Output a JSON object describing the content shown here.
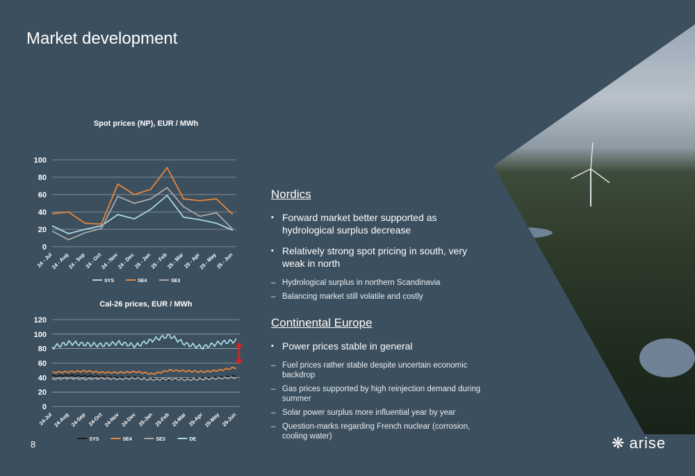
{
  "page": {
    "title": "Market development",
    "page_number": "8",
    "logo_text": "arise"
  },
  "chart_data": [
    {
      "type": "line",
      "title": "Spot prices (NP), EUR / MWh",
      "categories": [
        "24 - Jul",
        "24 - Aug",
        "24 - Sep",
        "24 - Oct",
        "24 - Nov",
        "24 - Dec",
        "25 - Jan",
        "25 - Feb",
        "25 - Mar",
        "25 - Apr",
        "25 - May",
        "25 - Jun"
      ],
      "ylim": [
        0,
        100
      ],
      "yticks": [
        "0",
        "20",
        "40",
        "60",
        "80",
        "100"
      ],
      "series": [
        {
          "name": "SYS",
          "color": "#a8d8e0",
          "values": [
            24,
            15,
            20,
            24,
            37,
            32,
            43,
            59,
            34,
            31,
            27,
            19
          ]
        },
        {
          "name": "SE4",
          "color": "#e8873a",
          "values": [
            38,
            40,
            27,
            26,
            72,
            60,
            66,
            91,
            55,
            53,
            55,
            37
          ]
        },
        {
          "name": "SE3",
          "color": "#a9a9a9",
          "values": [
            18,
            8,
            16,
            21,
            58,
            50,
            55,
            68,
            46,
            35,
            39,
            20
          ]
        }
      ],
      "legend": "bottom"
    },
    {
      "type": "line",
      "title": "Cal-26 prices, EUR / MWh",
      "categories": [
        "24-Jul",
        "24-Aug",
        "24-Sep",
        "24-Oct",
        "24-Nov",
        "24-Dec",
        "25-Jan",
        "25-Feb",
        "25-Mar",
        "25-Apr",
        "25-May",
        "25-Jun"
      ],
      "ylim": [
        0,
        120
      ],
      "yticks": [
        "0",
        "20",
        "40",
        "60",
        "80",
        "100",
        "120"
      ],
      "series": [
        {
          "name": "SYS",
          "color": "#1a1a1a",
          "values": [
            42,
            43,
            42,
            41,
            40,
            40,
            38,
            37,
            38,
            39,
            40,
            42
          ]
        },
        {
          "name": "SE4",
          "color": "#e8873a",
          "values": [
            47,
            48,
            49,
            47,
            47,
            48,
            45,
            50,
            49,
            48,
            50,
            54
          ]
        },
        {
          "name": "SE3",
          "color": "#a9a9a9",
          "values": [
            38,
            39,
            38,
            39,
            38,
            39,
            37,
            38,
            37,
            38,
            39,
            40
          ]
        },
        {
          "name": "DE",
          "color": "#a8d8e0",
          "values": [
            82,
            88,
            86,
            85,
            88,
            84,
            92,
            98,
            86,
            82,
            88,
            91
          ]
        }
      ],
      "legend": "bottom"
    }
  ],
  "nordics": {
    "title": "Nordics",
    "bullets": [
      "Forward market better supported as hydrological surplus decrease",
      "Relatively strong spot pricing in south, very weak in north"
    ],
    "dashes": [
      "Hydrological surplus in northern Scandinavia",
      "Balancing market still volatile and costly"
    ]
  },
  "continental": {
    "title": "Continental Europe",
    "bullets": [
      "Power prices stable in general"
    ],
    "dashes": [
      "Fuel prices rather stable despite uncertain economic backdrop",
      "Gas prices supported by high reinjection demand during summer",
      "Solar power surplus more influential year by year",
      "Question-marks regarding French nuclear (corrosion, cooling water)"
    ]
  }
}
